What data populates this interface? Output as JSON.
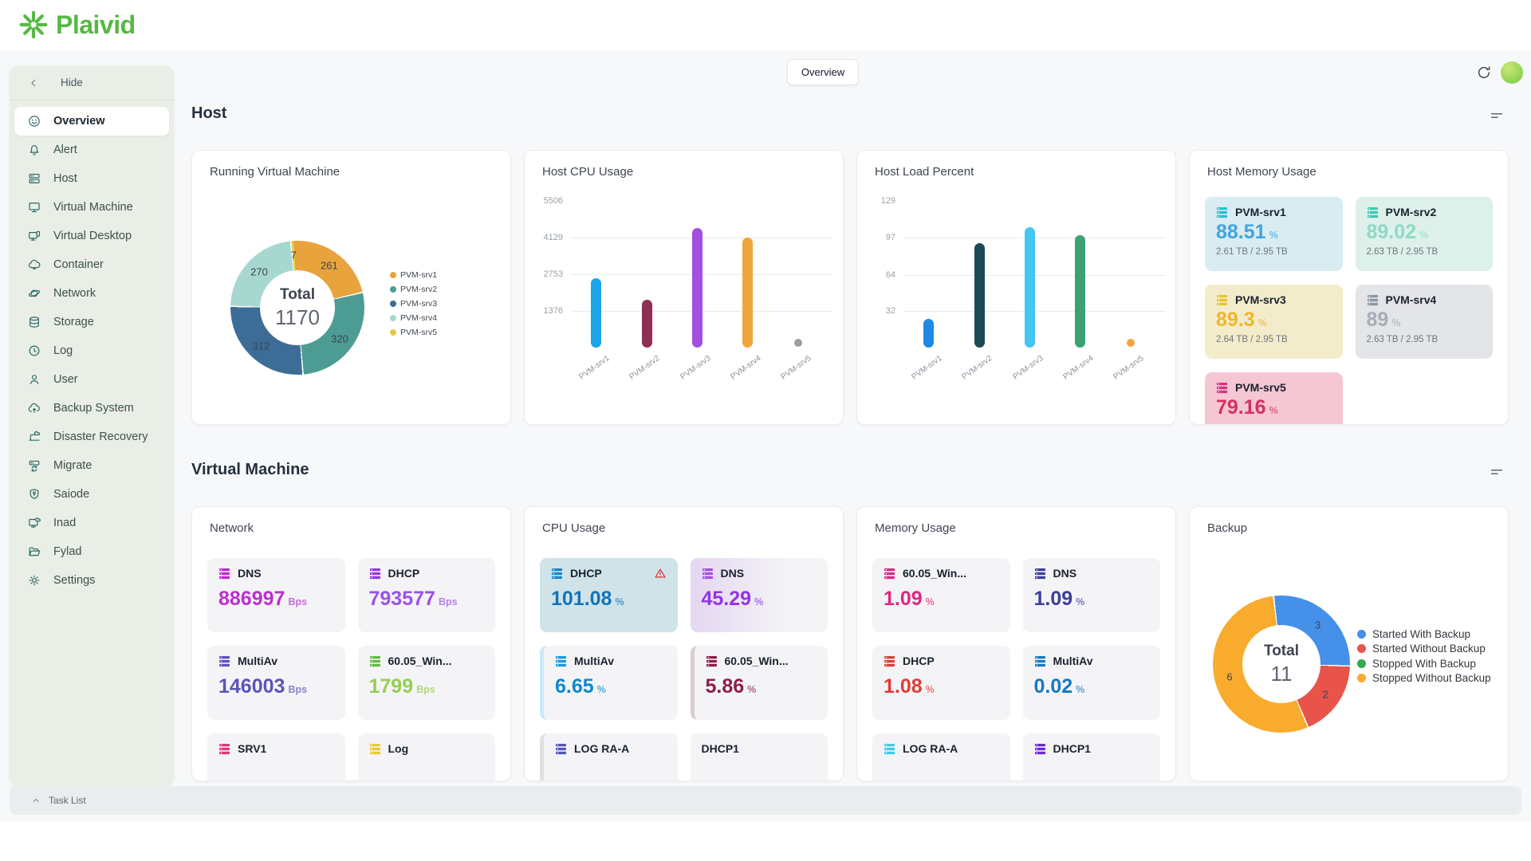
{
  "brand": {
    "name": "Plaivid",
    "color": "#56b843"
  },
  "topbar": {
    "active_tab": "Overview"
  },
  "sidebar": {
    "hide": "Hide",
    "items": [
      {
        "label": "Overview",
        "icon": "smiley",
        "active": true
      },
      {
        "label": "Alert",
        "icon": "bell"
      },
      {
        "label": "Host",
        "icon": "server"
      },
      {
        "label": "Virtual Machine",
        "icon": "monitor"
      },
      {
        "label": "Virtual Desktop",
        "icon": "dual-monitor"
      },
      {
        "label": "Container",
        "icon": "cloud"
      },
      {
        "label": "Network",
        "icon": "planet"
      },
      {
        "label": "Storage",
        "icon": "database"
      },
      {
        "label": "Log",
        "icon": "clock"
      },
      {
        "label": "User",
        "icon": "user"
      },
      {
        "label": "Backup System",
        "icon": "cloud-upload"
      },
      {
        "label": "Disaster Recovery",
        "icon": "laptop-cloud"
      },
      {
        "label": "Migrate",
        "icon": "server-sync"
      },
      {
        "label": "Saiode",
        "icon": "shield"
      },
      {
        "label": "Inad",
        "icon": "monitor-cloud"
      },
      {
        "label": "Fylad",
        "icon": "folder"
      },
      {
        "label": "Settings",
        "icon": "gear"
      }
    ]
  },
  "sections": {
    "host": "Host",
    "vm": "Virtual Machine"
  },
  "taskbar": {
    "label": "Task List"
  },
  "host_memory": {
    "title": "Host Memory Usage",
    "items": [
      {
        "name": "PVM-srv1",
        "value": "88.51",
        "unit": "%",
        "detail": "2.61 TB / 2.95 TB",
        "bg": "#d8ecf2",
        "value_color": "#41a4e0",
        "icon_color": "#2fb9d9"
      },
      {
        "name": "PVM-srv2",
        "value": "89.02",
        "unit": "%",
        "detail": "2.63 TB / 2.95 TB",
        "bg": "#def0ea",
        "value_color": "#8fd9c6",
        "icon_color": "#3fc6b2"
      },
      {
        "name": "PVM-srv3",
        "value": "89.3",
        "unit": "%",
        "detail": "2.64 TB / 2.95 TB",
        "bg": "#f3ecca",
        "value_color": "#f0b42c",
        "icon_color": "#e7c430"
      },
      {
        "name": "PVM-srv4",
        "value": "89",
        "unit": "%",
        "detail": "2.63 TB / 2.95 TB",
        "bg": "#e4e5e9",
        "value_color": "#a8acb5",
        "icon_color": "#8d95a5"
      },
      {
        "name": "PVM-srv5",
        "value": "79.16",
        "unit": "%",
        "bg": "#f5c7d3",
        "value_color": "#d62f61",
        "icon_color": "#d63384"
      }
    ]
  },
  "vm_network": {
    "title": "Network",
    "items": [
      {
        "name": "DNS",
        "value": "886997",
        "unit": "Bps",
        "value_color": "#bb2fd0",
        "icon_color": "#c026d3"
      },
      {
        "name": "DHCP",
        "value": "793577",
        "unit": "Bps",
        "value_color": "#9b51ea",
        "icon_color": "#9333ea"
      },
      {
        "name": "MultiAv",
        "value": "146003",
        "unit": "Bps",
        "value_color": "#5b54b8",
        "icon_color": "#5b54b8"
      },
      {
        "name": "60.05_Win...",
        "value": "1799",
        "unit": "Bps",
        "value_color": "#95ce51",
        "icon_color": "#61b944"
      },
      {
        "name": "SRV1",
        "icon_color": "#e0337c"
      },
      {
        "name": "Log",
        "icon_color": "#e8c832"
      }
    ]
  },
  "vm_cpu": {
    "title": "CPU Usage",
    "items": [
      {
        "name": "DHCP",
        "value": "101.08",
        "unit": "%",
        "value_color": "#1373b8",
        "icon_color": "#1a86c9",
        "warning": true,
        "bg": "#cfe3e9"
      },
      {
        "name": "DNS",
        "value": "45.29",
        "unit": "%",
        "value_color": "#9333ea",
        "icon_color": "#a34fe0",
        "bg": "linear-gradient(90deg,#e4d7f2 0%,#eee9f4 45%,#f4f4f6 70%)"
      },
      {
        "name": "MultiAv",
        "value": "6.65",
        "unit": "%",
        "value_color": "#0d87cd",
        "icon_color": "#1a9bd7",
        "accent": "#c9e9f5"
      },
      {
        "name": "60.05_Win...",
        "value": "5.86",
        "unit": "%",
        "value_color": "#8e1d4b",
        "icon_color": "#8e1d4b",
        "accent": "#d9ccd3"
      },
      {
        "name": "LOG RA-A",
        "icon_color": "#5156b8",
        "accent": "#dfdfe6"
      },
      {
        "name": "DHCP1"
      }
    ]
  },
  "vm_memory": {
    "title": "Memory Usage",
    "items": [
      {
        "name": "60.05_Win...",
        "value": "1.09",
        "unit": "%",
        "value_color": "#e02585",
        "icon_color": "#e02585"
      },
      {
        "name": "DNS",
        "value": "1.09",
        "unit": "%",
        "value_color": "#3b3e9c",
        "icon_color": "#3b3e9c"
      },
      {
        "name": "DHCP",
        "value": "1.08",
        "unit": "%",
        "value_color": "#e03a36",
        "icon_color": "#e03a36"
      },
      {
        "name": "MultiAv",
        "value": "0.02",
        "unit": "%",
        "value_color": "#1679c0",
        "icon_color": "#1679c0"
      },
      {
        "name": "LOG RA-A",
        "icon_color": "#3cc9e3"
      },
      {
        "name": "DHCP1",
        "icon_color": "#6d28d9"
      }
    ]
  },
  "chart_data": [
    {
      "id": "running_vm",
      "type": "donut",
      "title": "Running Virtual Machine",
      "center_label": "Total",
      "total": 1170,
      "legend_position": "right",
      "segments": [
        {
          "label": "PVM-srv1",
          "value": 261,
          "color": "#e8a33d"
        },
        {
          "label": "PVM-srv2",
          "value": 320,
          "color": "#4c9c94"
        },
        {
          "label": "PVM-srv3",
          "value": 312,
          "color": "#3d6d96"
        },
        {
          "label": "PVM-srv4",
          "value": 270,
          "color": "#a6d8cf"
        },
        {
          "label": "PVM-srv5",
          "value": 7,
          "color": "#e8c93e"
        }
      ]
    },
    {
      "id": "host_cpu",
      "type": "bar",
      "title": "Host CPU Usage",
      "categories": [
        "PVM-srv1",
        "PVM-srv2",
        "PVM-srv3",
        "PVM-srv4",
        "PVM-srv5"
      ],
      "values": [
        2600,
        1800,
        4500,
        4129,
        100
      ],
      "colors": [
        "#1ba4ea",
        "#8e2f56",
        "#a34fe0",
        "#f0a63c",
        "#9e9e9e"
      ],
      "yticks": [
        1376,
        2753,
        4129,
        5506
      ],
      "ymax": 5850,
      "xlabel": "",
      "ylabel": "",
      "grid": true
    },
    {
      "id": "host_load",
      "type": "bar",
      "title": "Host Load Percent",
      "categories": [
        "PVM-srv1",
        "PVM-srv2",
        "PVM-srv3",
        "PVM-srv4",
        "PVM-srv5"
      ],
      "values": [
        25,
        92,
        106,
        99,
        4
      ],
      "colors": [
        "#1e88e5",
        "#1d4a56",
        "#45c5f5",
        "#3ba273",
        "#f9a23c"
      ],
      "yticks": [
        32,
        64,
        97,
        129
      ],
      "ymax": 137,
      "xlabel": "",
      "ylabel": "",
      "grid": true
    },
    {
      "id": "backup",
      "type": "donut",
      "title": "Backup",
      "center_label": "Total",
      "total": 11,
      "legend_position": "right",
      "segments": [
        {
          "label": "Started With Backup",
          "value": 3,
          "color": "#4590e8"
        },
        {
          "label": "Started Without Backup",
          "value": 2,
          "color": "#e8544a"
        },
        {
          "label": "Stopped With Backup",
          "value": 0,
          "color": "#34a853"
        },
        {
          "label": "Stopped Without Backup",
          "value": 6,
          "color": "#f9ab2e"
        }
      ]
    }
  ]
}
